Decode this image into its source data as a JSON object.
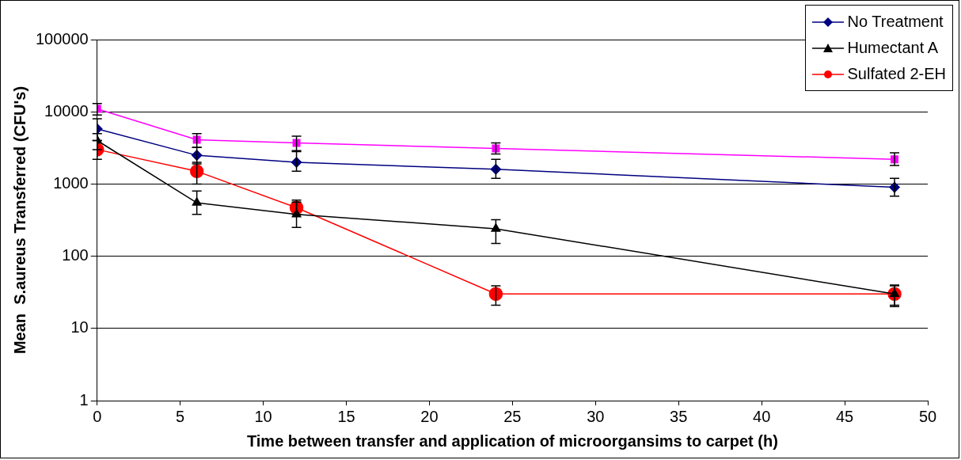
{
  "chart_data": {
    "type": "line",
    "xlabel": "Time between transfer and application of microorgansims to carpet (h)",
    "ylabel": "Mean  S.aureus Transferred (CFU's)",
    "x": [
      0,
      6,
      12,
      24,
      48
    ],
    "series": [
      {
        "name": "No Treatment",
        "color": "#000080",
        "marker": "diamond",
        "values": [
          5800,
          2500,
          2000,
          1600,
          900
        ],
        "errors": [
          [
            4000,
            8000
          ],
          [
            1900,
            3200
          ],
          [
            1500,
            2800
          ],
          [
            1200,
            2200
          ],
          [
            680,
            1200
          ]
        ]
      },
      {
        "color": "#ff00ff",
        "marker": "square",
        "values": [
          11000,
          4100,
          3700,
          3100,
          2200
        ],
        "errors": [
          [
            9000,
            13000
          ],
          [
            3200,
            5000
          ],
          [
            2900,
            4600
          ],
          [
            2600,
            3700
          ],
          [
            1800,
            2700
          ]
        ]
      },
      {
        "name": "Humectant A",
        "color": "#000000",
        "marker": "triangle",
        "values": [
          4000,
          550,
          380,
          240,
          30
        ],
        "errors": [
          [
            3000,
            5000
          ],
          [
            380,
            800
          ],
          [
            250,
            600
          ],
          [
            150,
            320
          ],
          [
            20,
            40
          ]
        ]
      },
      {
        "name": "Sulfated 2-EH",
        "color": "#ff0000",
        "marker": "circle",
        "values": [
          3000,
          1500,
          470,
          30,
          30
        ],
        "errors": [
          [
            2200,
            4000
          ],
          [
            1000,
            2000
          ],
          [
            380,
            560
          ],
          [
            21,
            39
          ],
          [
            21,
            39
          ]
        ]
      }
    ],
    "xlim": [
      0,
      50
    ],
    "xticks": [
      0,
      5,
      10,
      15,
      20,
      25,
      30,
      35,
      40,
      45,
      50
    ],
    "ylim": [
      1,
      100000
    ],
    "yticks": [
      1,
      10,
      100,
      1000,
      10000,
      100000
    ],
    "log": "y",
    "grid": "y",
    "legend": "top right"
  }
}
